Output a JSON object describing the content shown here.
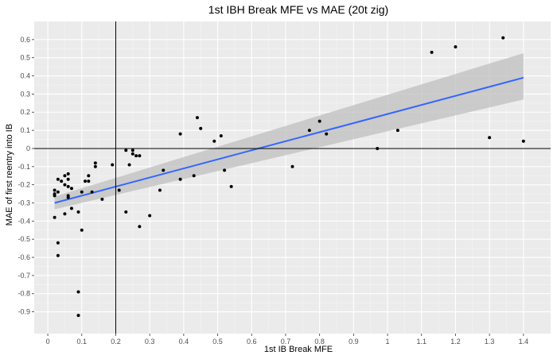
{
  "chart_data": {
    "type": "scatter",
    "title": "1st IBH Break MFE vs MAE (20t zig)",
    "xlabel": "1st IB Break MFE",
    "ylabel": "MAE of first reentry into IB",
    "xlim": [
      -0.04,
      1.48
    ],
    "ylim": [
      -1.02,
      0.7
    ],
    "xticks": [
      0,
      0.1,
      0.2,
      0.3,
      0.4,
      0.5,
      0.6,
      0.7,
      0.8,
      0.9,
      1,
      1.1,
      1.2,
      1.3,
      1.4
    ],
    "xtick_labels": [
      "0",
      "0.1",
      "0.2",
      "0.3",
      "0.4",
      "0.5",
      "0.6",
      "0.7",
      "0.8",
      "0.9",
      "1",
      "1.1",
      "1.2",
      "1.3",
      "1.4"
    ],
    "yticks": [
      0.6,
      0.5,
      0.4,
      0.3,
      0.2,
      0.1,
      0,
      -0.1,
      -0.2,
      -0.3,
      -0.4,
      -0.5,
      -0.6,
      -0.7,
      -0.8,
      -0.9
    ],
    "ytick_labels": [
      "0.6",
      "0.5",
      "0.4",
      "0.3",
      "0.2",
      "0.1",
      "0",
      "-0.1",
      "-0.2",
      "-0.3",
      "-0.4",
      "-0.5",
      "-0.6",
      "-0.7",
      "-0.8",
      "-0.9"
    ],
    "reference_lines": {
      "vertical_x": 0.2,
      "horizontal_y": 0
    },
    "grid": true,
    "background_color": "#ebebeb",
    "point_color": "#000000",
    "fit": {
      "method": "linear",
      "x": [
        0.02,
        1.4
      ],
      "y": [
        -0.3,
        0.39
      ],
      "ci_lower": [
        -0.335,
        0.27
      ],
      "ci_upper": [
        -0.265,
        0.525
      ],
      "line_color": "#3366ff",
      "band_color": "#bfbfbf"
    },
    "points": [
      {
        "x": 0.02,
        "y": -0.23
      },
      {
        "x": 0.02,
        "y": -0.26
      },
      {
        "x": 0.02,
        "y": -0.25
      },
      {
        "x": 0.02,
        "y": -0.38
      },
      {
        "x": 0.03,
        "y": -0.17
      },
      {
        "x": 0.03,
        "y": -0.24
      },
      {
        "x": 0.03,
        "y": -0.52
      },
      {
        "x": 0.03,
        "y": -0.59
      },
      {
        "x": 0.04,
        "y": -0.18
      },
      {
        "x": 0.05,
        "y": -0.15
      },
      {
        "x": 0.05,
        "y": -0.2
      },
      {
        "x": 0.05,
        "y": -0.36
      },
      {
        "x": 0.06,
        "y": -0.14
      },
      {
        "x": 0.06,
        "y": -0.17
      },
      {
        "x": 0.06,
        "y": -0.21
      },
      {
        "x": 0.06,
        "y": -0.26
      },
      {
        "x": 0.06,
        "y": -0.27
      },
      {
        "x": 0.07,
        "y": -0.22
      },
      {
        "x": 0.07,
        "y": -0.33
      },
      {
        "x": 0.09,
        "y": -0.35
      },
      {
        "x": 0.09,
        "y": -0.79
      },
      {
        "x": 0.09,
        "y": -0.92
      },
      {
        "x": 0.1,
        "y": -0.24
      },
      {
        "x": 0.1,
        "y": -0.45
      },
      {
        "x": 0.11,
        "y": -0.18
      },
      {
        "x": 0.12,
        "y": -0.15
      },
      {
        "x": 0.12,
        "y": -0.18
      },
      {
        "x": 0.13,
        "y": -0.24
      },
      {
        "x": 0.14,
        "y": -0.08
      },
      {
        "x": 0.14,
        "y": -0.1
      },
      {
        "x": 0.16,
        "y": -0.28
      },
      {
        "x": 0.19,
        "y": -0.09
      },
      {
        "x": 0.21,
        "y": -0.23
      },
      {
        "x": 0.23,
        "y": -0.01
      },
      {
        "x": 0.23,
        "y": -0.35
      },
      {
        "x": 0.24,
        "y": -0.09
      },
      {
        "x": 0.25,
        "y": -0.01
      },
      {
        "x": 0.25,
        "y": -0.03
      },
      {
        "x": 0.26,
        "y": -0.04
      },
      {
        "x": 0.27,
        "y": -0.04
      },
      {
        "x": 0.27,
        "y": -0.43
      },
      {
        "x": 0.3,
        "y": -0.37
      },
      {
        "x": 0.33,
        "y": -0.23
      },
      {
        "x": 0.34,
        "y": -0.12
      },
      {
        "x": 0.39,
        "y": 0.08
      },
      {
        "x": 0.39,
        "y": -0.17
      },
      {
        "x": 0.43,
        "y": -0.15
      },
      {
        "x": 0.44,
        "y": 0.17
      },
      {
        "x": 0.45,
        "y": 0.11
      },
      {
        "x": 0.49,
        "y": 0.04
      },
      {
        "x": 0.51,
        "y": 0.07
      },
      {
        "x": 0.52,
        "y": -0.12
      },
      {
        "x": 0.54,
        "y": -0.21
      },
      {
        "x": 0.72,
        "y": -0.1
      },
      {
        "x": 0.77,
        "y": 0.1
      },
      {
        "x": 0.8,
        "y": 0.15
      },
      {
        "x": 0.82,
        "y": 0.08
      },
      {
        "x": 0.97,
        "y": 0.0
      },
      {
        "x": 1.03,
        "y": 0.1
      },
      {
        "x": 1.13,
        "y": 0.53
      },
      {
        "x": 1.2,
        "y": 0.56
      },
      {
        "x": 1.3,
        "y": 0.06
      },
      {
        "x": 1.34,
        "y": 0.61
      },
      {
        "x": 1.4,
        "y": 0.04
      }
    ]
  }
}
